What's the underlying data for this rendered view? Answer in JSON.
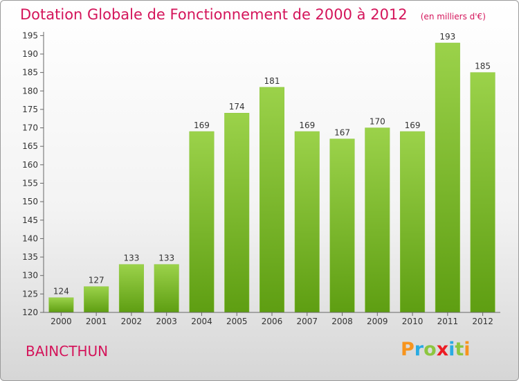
{
  "chart_data": {
    "type": "bar",
    "title": "Dotation Globale de Fonctionnement de 2000 à 2012",
    "subtitle": "(en milliers d'€)",
    "categories": [
      "2000",
      "2001",
      "2002",
      "2003",
      "2004",
      "2005",
      "2006",
      "2007",
      "2008",
      "2009",
      "2010",
      "2011",
      "2012"
    ],
    "values": [
      124,
      127,
      133,
      133,
      169,
      174,
      181,
      169,
      167,
      170,
      169,
      193,
      185
    ],
    "data_labels": [
      "124",
      "127",
      "133",
      "133",
      "169",
      "174",
      "181",
      "169",
      "167",
      "170",
      "169",
      "193",
      "185"
    ],
    "y_ticks": [
      120,
      125,
      130,
      135,
      140,
      145,
      150,
      155,
      160,
      165,
      170,
      175,
      180,
      185,
      190,
      195
    ],
    "ylim": [
      120,
      196
    ],
    "grid": false,
    "bar_color": "#8cc63f"
  },
  "commune": "BAINCTHUN",
  "logo": {
    "letters": [
      "P",
      "r",
      "o",
      "x",
      "i",
      "t",
      "i"
    ],
    "colors": [
      "#f7941d",
      "#29abe2",
      "#8cc63f",
      "#ed1c24",
      "#29abe2",
      "#8cc63f",
      "#f7941d"
    ]
  },
  "accent_color": "#d4145a"
}
